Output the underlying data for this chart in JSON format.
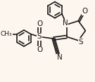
{
  "bg_color": "#fdf6ee",
  "bond_color": "#1a1a1a",
  "atom_color": "#1a1a1a",
  "lw": 1.2,
  "fs": 6.5,
  "fig_w": 1.35,
  "fig_h": 1.17,
  "dpi": 100,
  "xlim": [
    -1.0,
    1.05
  ],
  "ylim": [
    -1.15,
    1.05
  ]
}
